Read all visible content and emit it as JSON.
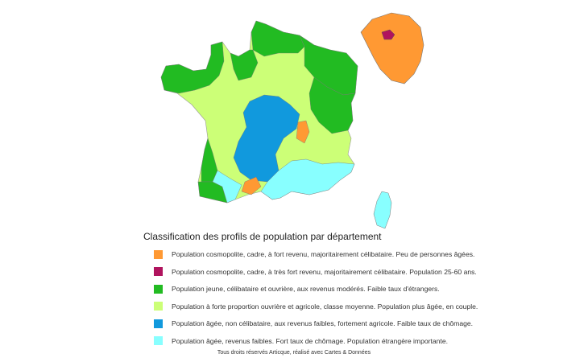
{
  "legend": {
    "title": "Classification des profils de population par département",
    "items": [
      {
        "color": "#FF9933",
        "label": "Population cosmopolite, cadre, à fort revenu, majoritairement célibataire. Peu de personnes âgées."
      },
      {
        "color": "#B0145E",
        "label": "Population cosmopolite, cadre, à très fort revenu, majoritairement célibataire. Population 25-60 ans."
      },
      {
        "color": "#22BB22",
        "label": "Population jeune, célibataire et ouvrière, aux revenus modérés. Faible taux d'étrangers."
      },
      {
        "color": "#CCFF77",
        "label": "Population à forte proportion ouvrière et agricole, classe moyenne. Population plus âgée, en couple."
      },
      {
        "color": "#1199DD",
        "label": "Population âgée, non célibataire, aux revenus faibles, fortement agricole. Faible taux de chômage."
      },
      {
        "color": "#88FFFF",
        "label": "Population âgée, revenus faibles. Fort taux de chômage. Population étrangère importante."
      }
    ]
  },
  "footer": {
    "credits": "Tous droits réservés Articque, réalisé avec Cartes & Données"
  }
}
